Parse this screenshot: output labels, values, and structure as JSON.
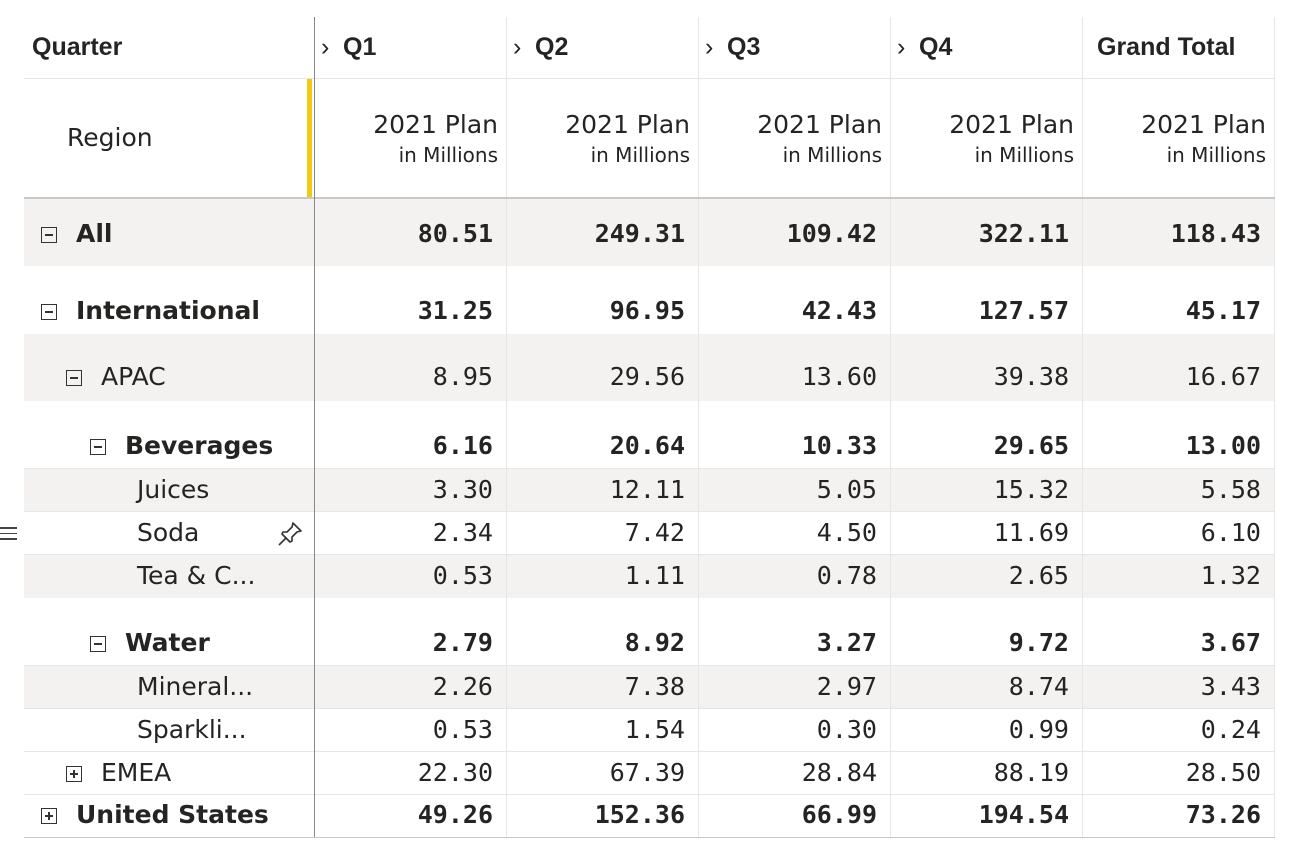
{
  "header": {
    "row_header_title": "Quarter",
    "columns": [
      {
        "label": "Q1",
        "expand_icon": "chevron-right-icon"
      },
      {
        "label": "Q2",
        "expand_icon": "chevron-right-icon"
      },
      {
        "label": "Q3",
        "expand_icon": "chevron-right-icon"
      },
      {
        "label": "Q4",
        "expand_icon": "chevron-right-icon"
      }
    ],
    "grand_total": "Grand Total",
    "region_label": "Region",
    "measure_line1": "2021 Plan",
    "measure_line2": "in Millions"
  },
  "rows": [
    {
      "label": "All",
      "toggle": "minus",
      "values": [
        "80.51",
        "249.31",
        "109.42",
        "322.11",
        "118.43"
      ]
    },
    {
      "label": "International",
      "toggle": "minus",
      "values": [
        "31.25",
        "96.95",
        "42.43",
        "127.57",
        "45.17"
      ]
    },
    {
      "label": "APAC",
      "toggle": "minus",
      "values": [
        "8.95",
        "29.56",
        "13.60",
        "39.38",
        "16.67"
      ]
    },
    {
      "label": "Beverages",
      "toggle": "minus",
      "values": [
        "6.16",
        "20.64",
        "10.33",
        "29.65",
        "13.00"
      ]
    },
    {
      "label": "Juices",
      "values": [
        "3.30",
        "12.11",
        "5.05",
        "15.32",
        "5.58"
      ]
    },
    {
      "label": "Soda",
      "icon": "pin-icon",
      "values": [
        "2.34",
        "7.42",
        "4.50",
        "11.69",
        "6.10"
      ]
    },
    {
      "label": "Tea & C...",
      "values": [
        "0.53",
        "1.11",
        "0.78",
        "2.65",
        "1.32"
      ]
    },
    {
      "label": "Water",
      "toggle": "minus",
      "values": [
        "2.79",
        "8.92",
        "3.27",
        "9.72",
        "3.67"
      ]
    },
    {
      "label": "Mineral...",
      "values": [
        "2.26",
        "7.38",
        "2.97",
        "8.74",
        "3.43"
      ]
    },
    {
      "label": "Sparkli...",
      "values": [
        "0.53",
        "1.54",
        "0.30",
        "0.99",
        "0.24"
      ]
    },
    {
      "label": "EMEA",
      "toggle": "plus",
      "values": [
        "22.30",
        "67.39",
        "28.84",
        "88.19",
        "28.50"
      ]
    },
    {
      "label": "United States",
      "toggle": "plus",
      "values": [
        "49.26",
        "152.36",
        "66.99",
        "194.54",
        "73.26"
      ]
    }
  ],
  "icons": {
    "left_handle": "hamburger-menu-icon"
  },
  "colors": {
    "accent_resize": "#f2c811",
    "row_shade": "#f3f2f1"
  }
}
